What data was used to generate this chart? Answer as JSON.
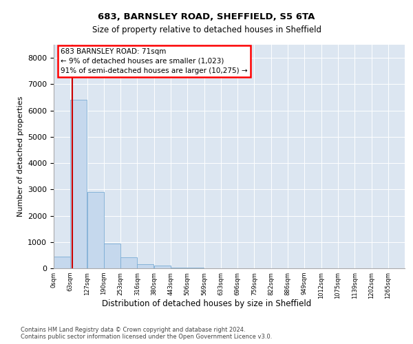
{
  "title1": "683, BARNSLEY ROAD, SHEFFIELD, S5 6TA",
  "title2": "Size of property relative to detached houses in Sheffield",
  "xlabel": "Distribution of detached houses by size in Sheffield",
  "ylabel": "Number of detached properties",
  "bar_color": "#c5d8ed",
  "bar_edge_color": "#7bacd4",
  "bg_color": "#dce6f1",
  "annotation_text": "683 BARNSLEY ROAD: 71sqm\n← 9% of detached houses are smaller (1,023)\n91% of semi-detached houses are larger (10,275) →",
  "vline_x": 71,
  "vline_color": "#cc0000",
  "footer_text": "Contains HM Land Registry data © Crown copyright and database right 2024.\nContains public sector information licensed under the Open Government Licence v3.0.",
  "categories": [
    "0sqm",
    "63sqm",
    "127sqm",
    "190sqm",
    "253sqm",
    "316sqm",
    "380sqm",
    "443sqm",
    "506sqm",
    "569sqm",
    "633sqm",
    "696sqm",
    "759sqm",
    "822sqm",
    "886sqm",
    "949sqm",
    "1012sqm",
    "1075sqm",
    "1139sqm",
    "1202sqm",
    "1265sqm"
  ],
  "bin_edges": [
    0,
    63,
    127,
    190,
    253,
    316,
    380,
    443,
    506,
    569,
    633,
    696,
    759,
    822,
    886,
    949,
    1012,
    1075,
    1139,
    1202,
    1265
  ],
  "values": [
    450,
    6400,
    2900,
    950,
    420,
    170,
    100,
    30,
    30,
    0,
    0,
    0,
    0,
    0,
    0,
    0,
    0,
    0,
    0,
    0
  ],
  "ylim": [
    0,
    8500
  ],
  "yticks": [
    0,
    1000,
    2000,
    3000,
    4000,
    5000,
    6000,
    7000,
    8000
  ]
}
